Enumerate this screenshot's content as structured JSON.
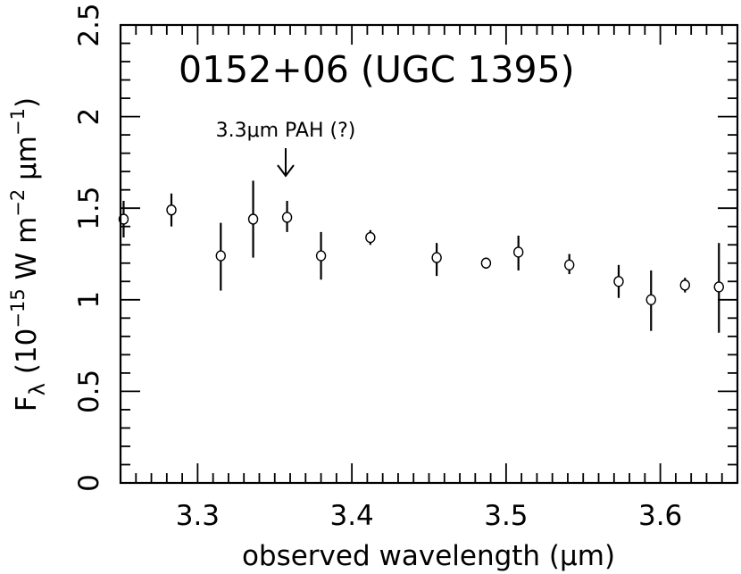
{
  "chart_data": {
    "type": "scatter",
    "title": "0152+06 (UGC 1395)",
    "xlabel": "observed wavelength (μm)",
    "ylabel_parts": {
      "symbol": "F",
      "subscript": "λ",
      "open": " (10",
      "exp1": "−15",
      "mid": " W m",
      "exp2": "−2",
      "sp": " μm",
      "exp3": "−1",
      "close": ")"
    },
    "xlim": [
      3.25,
      3.65
    ],
    "ylim": [
      0,
      2.5
    ],
    "x_ticks": [
      3.3,
      3.4,
      3.5,
      3.6
    ],
    "x_tick_labels": [
      "3.3",
      "3.4",
      "3.5",
      "3.6"
    ],
    "y_ticks": [
      0,
      0.5,
      1,
      1.5,
      2,
      2.5
    ],
    "y_tick_labels": [
      "0",
      "0.5",
      "1",
      "1.5",
      "2",
      "2.5"
    ],
    "grid": false,
    "annotation": {
      "text": "3.3μm PAH (?)",
      "x": 3.357
    },
    "points": [
      {
        "x": 3.252,
        "y": 1.44,
        "lo": 1.34,
        "hi": 1.54
      },
      {
        "x": 3.283,
        "y": 1.49,
        "lo": 1.4,
        "hi": 1.58
      },
      {
        "x": 3.315,
        "y": 1.24,
        "lo": 1.05,
        "hi": 1.42
      },
      {
        "x": 3.336,
        "y": 1.44,
        "lo": 1.23,
        "hi": 1.65
      },
      {
        "x": 3.358,
        "y": 1.45,
        "lo": 1.37,
        "hi": 1.54
      },
      {
        "x": 3.38,
        "y": 1.24,
        "lo": 1.11,
        "hi": 1.37
      },
      {
        "x": 3.412,
        "y": 1.34,
        "lo": 1.3,
        "hi": 1.38
      },
      {
        "x": 3.455,
        "y": 1.23,
        "lo": 1.13,
        "hi": 1.31
      },
      {
        "x": 3.487,
        "y": 1.2,
        "lo": 1.17,
        "hi": 1.23
      },
      {
        "x": 3.508,
        "y": 1.26,
        "lo": 1.16,
        "hi": 1.35
      },
      {
        "x": 3.541,
        "y": 1.19,
        "lo": 1.14,
        "hi": 1.25
      },
      {
        "x": 3.573,
        "y": 1.1,
        "lo": 1.01,
        "hi": 1.19
      },
      {
        "x": 3.594,
        "y": 1.0,
        "lo": 0.83,
        "hi": 1.16
      },
      {
        "x": 3.616,
        "y": 1.08,
        "lo": 1.04,
        "hi": 1.12
      },
      {
        "x": 3.638,
        "y": 1.07,
        "lo": 0.82,
        "hi": 1.31
      }
    ]
  }
}
